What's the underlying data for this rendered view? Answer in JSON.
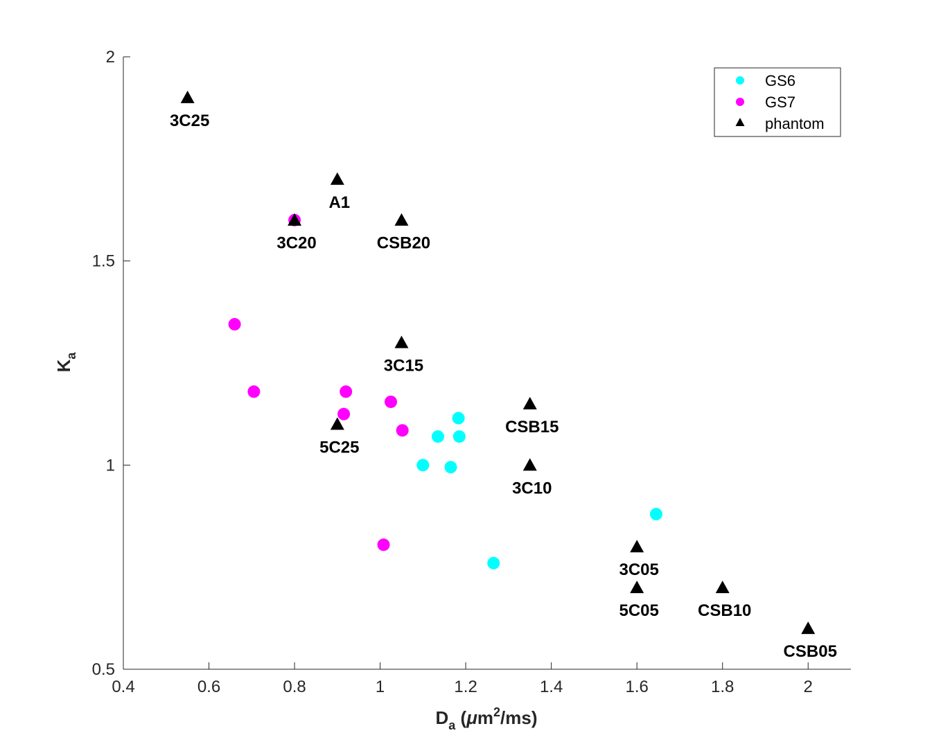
{
  "chart_data": {
    "type": "scatter",
    "title": "",
    "xlabel": {
      "base": "D",
      "sub": "a",
      "open": " (",
      "mu": "μ",
      "m": "m",
      "sup": "2",
      "rest": "/ms)"
    },
    "ylabel": {
      "base": "K",
      "sub": "a"
    },
    "xlim": [
      0.4,
      2.1
    ],
    "ylim": [
      0.5,
      2.0
    ],
    "xticks": [
      0.4,
      0.6,
      0.8,
      1.0,
      1.2,
      1.4,
      1.6,
      1.8,
      2.0
    ],
    "xtick_labels": [
      "0.4",
      "0.6",
      "0.8",
      "1",
      "1.2",
      "1.4",
      "1.6",
      "1.8",
      "2"
    ],
    "yticks": [
      0.5,
      1.0,
      1.5,
      2.0
    ],
    "ytick_labels": [
      "0.5",
      "1",
      "1.5",
      "2"
    ],
    "legend_position": "top-right",
    "series": [
      {
        "name": "GS6",
        "marker": "circle",
        "color": "#00ffff",
        "points": [
          {
            "x": 1.1,
            "y": 1.0
          },
          {
            "x": 1.135,
            "y": 1.07
          },
          {
            "x": 1.165,
            "y": 0.995
          },
          {
            "x": 1.183,
            "y": 1.115
          },
          {
            "x": 1.185,
            "y": 1.07
          },
          {
            "x": 1.265,
            "y": 0.76
          },
          {
            "x": 1.645,
            "y": 0.88
          }
        ]
      },
      {
        "name": "GS7",
        "marker": "circle",
        "color": "#ff00ff",
        "points": [
          {
            "x": 0.66,
            "y": 1.345
          },
          {
            "x": 0.705,
            "y": 1.18
          },
          {
            "x": 0.8,
            "y": 1.6
          },
          {
            "x": 0.915,
            "y": 1.125
          },
          {
            "x": 0.92,
            "y": 1.18
          },
          {
            "x": 1.008,
            "y": 0.805
          },
          {
            "x": 1.025,
            "y": 1.155
          },
          {
            "x": 1.052,
            "y": 1.085
          }
        ]
      },
      {
        "name": "phantom",
        "marker": "triangle",
        "color": "#000000",
        "points": [
          {
            "x": 0.55,
            "y": 1.9,
            "label": "3C25"
          },
          {
            "x": 0.9,
            "y": 1.7,
            "label": "A1"
          },
          {
            "x": 0.8,
            "y": 1.6,
            "label": "3C20"
          },
          {
            "x": 1.05,
            "y": 1.6,
            "label": "CSB20"
          },
          {
            "x": 1.05,
            "y": 1.3,
            "label": "3C15"
          },
          {
            "x": 0.9,
            "y": 1.1,
            "label": "5C25"
          },
          {
            "x": 1.35,
            "y": 1.15,
            "label": "CSB15"
          },
          {
            "x": 1.35,
            "y": 1.0,
            "label": "3C10"
          },
          {
            "x": 1.6,
            "y": 0.8,
            "label": "3C05"
          },
          {
            "x": 1.6,
            "y": 0.7,
            "label": "5C05"
          },
          {
            "x": 1.8,
            "y": 0.7,
            "label": "CSB10"
          },
          {
            "x": 2.0,
            "y": 0.6,
            "label": "CSB05"
          }
        ]
      }
    ]
  }
}
